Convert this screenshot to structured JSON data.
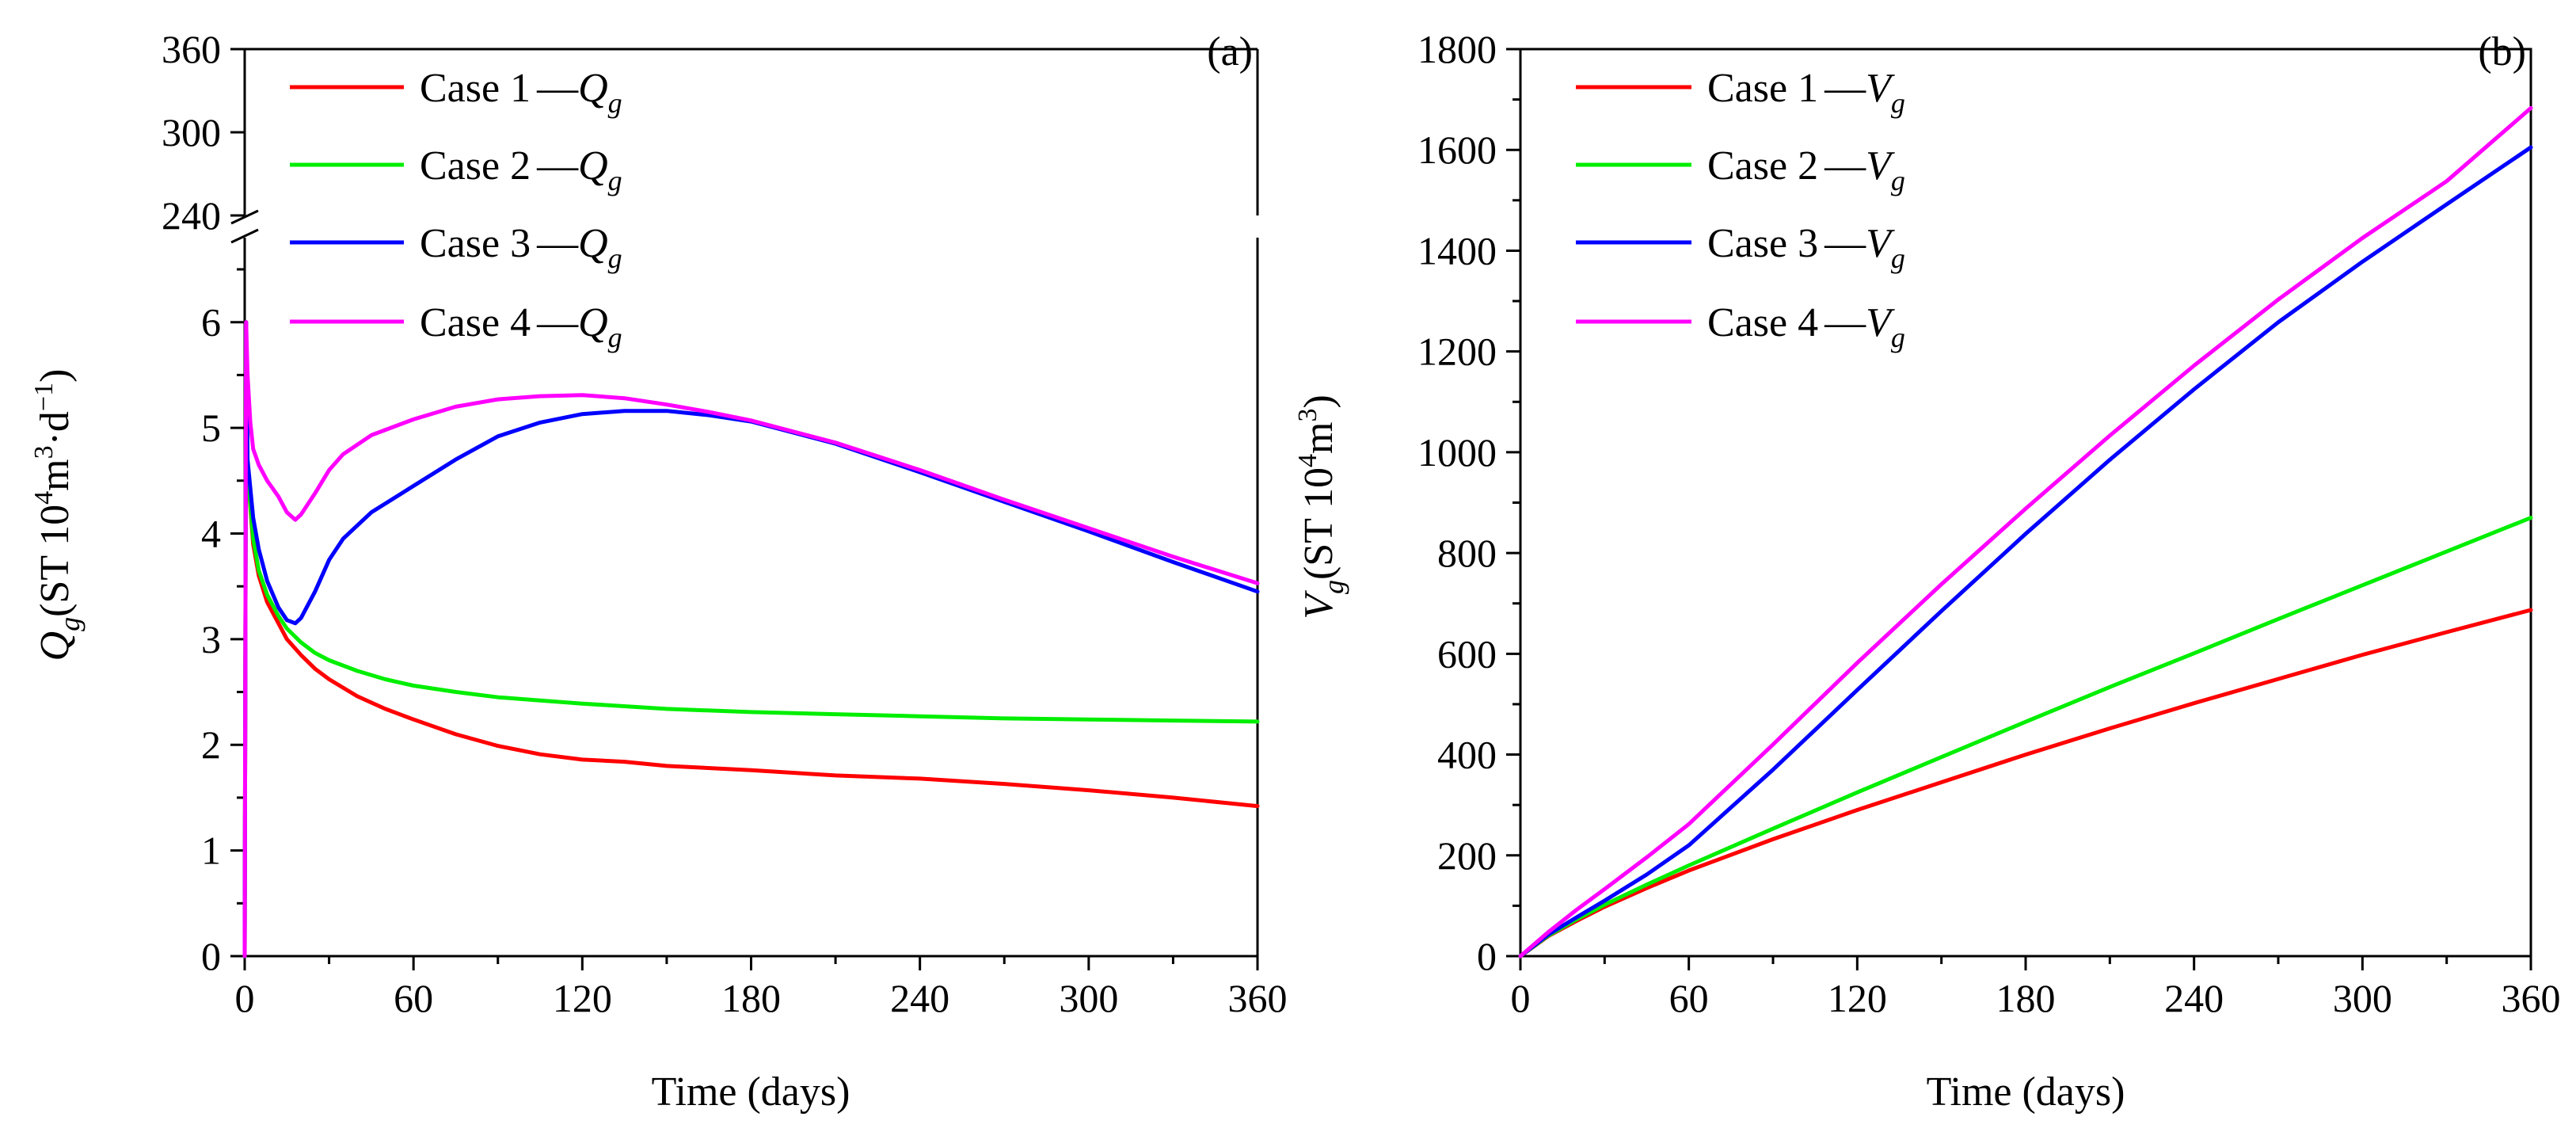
{
  "chart_data": [
    {
      "panel": "(a)",
      "type": "line",
      "xlabel": "Time (days)",
      "ylabel_main": "Q",
      "ylabel_sub": "g",
      "ylabel_unit_pre": "(ST 10",
      "ylabel_unit_exp1": "4",
      "ylabel_unit_mid": "m",
      "ylabel_unit_exp2": "3",
      "ylabel_unit_dot": "·d",
      "ylabel_unit_exp3": "−1",
      "ylabel_unit_post": ")",
      "xlim": [
        0,
        360
      ],
      "xticks": [
        "0",
        "60",
        "120",
        "180",
        "240",
        "300",
        "360"
      ],
      "ylim_lower": [
        0,
        6.8
      ],
      "yticks_lower": [
        "0",
        "1",
        "2",
        "3",
        "4",
        "5",
        "6"
      ],
      "ylim_upper": [
        240,
        360
      ],
      "yticks_upper": [
        "240",
        "300",
        "360"
      ],
      "axis_break": true,
      "series": [
        {
          "name": "Case 1",
          "symbol": "Q",
          "sub": "g",
          "color": "#ff0000",
          "x": [
            0,
            0.5,
            1,
            3,
            5,
            8,
            12,
            15,
            20,
            25,
            30,
            40,
            50,
            60,
            75,
            90,
            105,
            120,
            135,
            150,
            180,
            210,
            240,
            270,
            300,
            330,
            360
          ],
          "y": [
            0,
            6.0,
            4.6,
            3.9,
            3.6,
            3.35,
            3.15,
            3.0,
            2.85,
            2.72,
            2.62,
            2.46,
            2.34,
            2.24,
            2.1,
            1.99,
            1.91,
            1.86,
            1.84,
            1.8,
            1.76,
            1.71,
            1.68,
            1.63,
            1.57,
            1.5,
            1.42
          ]
        },
        {
          "name": "Case 2",
          "symbol": "Q",
          "sub": "g",
          "color": "#00ee00",
          "x": [
            0,
            0.5,
            1,
            3,
            5,
            8,
            12,
            15,
            20,
            25,
            30,
            40,
            50,
            60,
            75,
            90,
            105,
            120,
            150,
            180,
            210,
            240,
            270,
            300,
            330,
            360
          ],
          "y": [
            0,
            6.0,
            4.6,
            3.95,
            3.65,
            3.42,
            3.22,
            3.1,
            2.97,
            2.87,
            2.8,
            2.7,
            2.62,
            2.56,
            2.5,
            2.45,
            2.42,
            2.39,
            2.34,
            2.31,
            2.29,
            2.27,
            2.25,
            2.24,
            2.23,
            2.22
          ]
        },
        {
          "name": "Case 3",
          "symbol": "Q",
          "sub": "g",
          "color": "#0000ff",
          "x": [
            0,
            0.5,
            1,
            3,
            5,
            8,
            12,
            15,
            18,
            20,
            25,
            30,
            35,
            45,
            60,
            75,
            90,
            105,
            120,
            135,
            150,
            165,
            180,
            210,
            240,
            270,
            300,
            330,
            360
          ],
          "y": [
            0,
            6.0,
            4.7,
            4.15,
            3.85,
            3.55,
            3.3,
            3.18,
            3.15,
            3.2,
            3.45,
            3.75,
            3.95,
            4.2,
            4.45,
            4.7,
            4.92,
            5.05,
            5.13,
            5.16,
            5.16,
            5.12,
            5.06,
            4.85,
            4.58,
            4.3,
            4.02,
            3.73,
            3.45
          ]
        },
        {
          "name": "Case 4",
          "symbol": "Q",
          "sub": "g",
          "color": "#ff00ff",
          "x": [
            0,
            0.5,
            1,
            2,
            3,
            5,
            8,
            12,
            15,
            18,
            20,
            25,
            30,
            35,
            45,
            60,
            75,
            90,
            105,
            120,
            135,
            150,
            165,
            180,
            210,
            240,
            270,
            300,
            330,
            360
          ],
          "y": [
            0,
            6.0,
            5.5,
            5.05,
            4.8,
            4.65,
            4.5,
            4.35,
            4.2,
            4.13,
            4.18,
            4.38,
            4.6,
            4.75,
            4.93,
            5.08,
            5.2,
            5.27,
            5.3,
            5.31,
            5.28,
            5.22,
            5.15,
            5.07,
            4.86,
            4.6,
            4.32,
            4.05,
            3.78,
            3.53
          ]
        }
      ]
    },
    {
      "panel": "(b)",
      "type": "line",
      "xlabel": "Time (days)",
      "ylabel_main": "V",
      "ylabel_sub": "g",
      "ylabel_unit_pre": "(ST 10",
      "ylabel_unit_exp1": "4",
      "ylabel_unit_mid": "m",
      "ylabel_unit_exp2": "3",
      "ylabel_unit_post": ")",
      "xlim": [
        0,
        360
      ],
      "xticks": [
        "0",
        "60",
        "120",
        "180",
        "240",
        "300",
        "360"
      ],
      "ylim": [
        0,
        1800
      ],
      "yticks": [
        "0",
        "200",
        "400",
        "600",
        "800",
        "1000",
        "1200",
        "1400",
        "1600",
        "1800"
      ],
      "series": [
        {
          "name": "Case 1",
          "symbol": "V",
          "sub": "g",
          "color": "#ff0000",
          "x": [
            0,
            10,
            20,
            30,
            45,
            60,
            90,
            120,
            150,
            180,
            210,
            240,
            270,
            300,
            330,
            360
          ],
          "y": [
            0,
            40,
            70,
            98,
            135,
            170,
            232,
            290,
            345,
            400,
            452,
            502,
            550,
            598,
            643,
            687
          ]
        },
        {
          "name": "Case 2",
          "symbol": "V",
          "sub": "g",
          "color": "#00ee00",
          "x": [
            0,
            10,
            20,
            30,
            45,
            60,
            90,
            120,
            150,
            180,
            210,
            240,
            270,
            300,
            330,
            360
          ],
          "y": [
            0,
            41,
            73,
            102,
            142,
            180,
            253,
            325,
            395,
            465,
            534,
            601,
            669,
            736,
            803,
            870
          ]
        },
        {
          "name": "Case 3",
          "symbol": "V",
          "sub": "g",
          "color": "#0000ff",
          "x": [
            0,
            10,
            20,
            30,
            45,
            60,
            90,
            120,
            150,
            180,
            210,
            240,
            270,
            300,
            330,
            360
          ],
          "y": [
            0,
            43,
            77,
            110,
            162,
            220,
            370,
            528,
            685,
            838,
            985,
            1125,
            1258,
            1378,
            1492,
            1605
          ]
        },
        {
          "name": "Case 4",
          "symbol": "V",
          "sub": "g",
          "color": "#ff00ff",
          "x": [
            0,
            10,
            20,
            30,
            45,
            60,
            90,
            120,
            150,
            180,
            210,
            240,
            270,
            300,
            330,
            360
          ],
          "y": [
            0,
            48,
            92,
            133,
            196,
            262,
            420,
            582,
            738,
            888,
            1033,
            1172,
            1303,
            1425,
            1538,
            1683
          ]
        }
      ]
    }
  ]
}
